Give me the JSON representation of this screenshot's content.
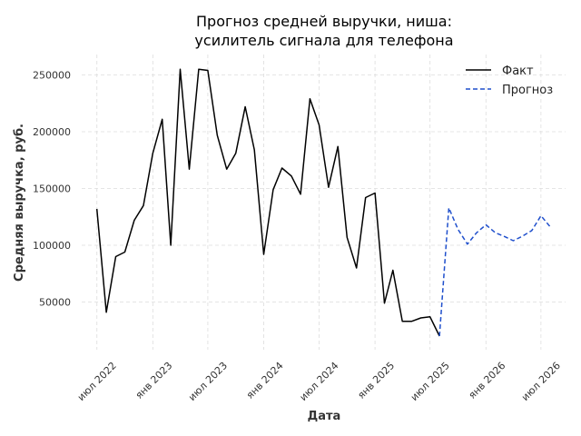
{
  "chart_data": {
    "type": "line",
    "title_lines": [
      "Прогноз средней выручки, ниша:",
      "усилитель сигнала для телефона"
    ],
    "xlabel": "Дата",
    "ylabel": "Средняя выручка, руб.",
    "x_tick_labels": [
      "июл 2022",
      "янв 2023",
      "июл 2023",
      "янв 2024",
      "июл 2024",
      "янв 2025",
      "июл 2025",
      "янв 2026",
      "июл 2026"
    ],
    "y_ticks": [
      50000,
      100000,
      150000,
      200000,
      250000
    ],
    "y_tick_labels": [
      "50000",
      "100000",
      "150000",
      "200000",
      "250000"
    ],
    "ylim": [
      8000,
      268000
    ],
    "xlim": [
      "2022-05-12",
      "2026-09-20"
    ],
    "grid": true,
    "legend_position": "top-right",
    "series": [
      {
        "name": "Факт",
        "color": "#000000",
        "style": "solid",
        "points": [
          [
            "2022-07",
            132000
          ],
          [
            "2022-08",
            41000
          ],
          [
            "2022-09",
            90000
          ],
          [
            "2022-10",
            94000
          ],
          [
            "2022-11",
            122000
          ],
          [
            "2022-12",
            135000
          ],
          [
            "2023-01",
            181000
          ],
          [
            "2023-02",
            211000
          ],
          [
            "2023-03",
            100000
          ],
          [
            "2023-04",
            255000
          ],
          [
            "2023-05",
            167000
          ],
          [
            "2023-06",
            255000
          ],
          [
            "2023-07",
            254000
          ],
          [
            "2023-08",
            197000
          ],
          [
            "2023-09",
            167000
          ],
          [
            "2023-10",
            181000
          ],
          [
            "2023-11",
            222000
          ],
          [
            "2023-12",
            184000
          ],
          [
            "2024-01",
            92000
          ],
          [
            "2024-02",
            149000
          ],
          [
            "2024-03",
            168000
          ],
          [
            "2024-04",
            161000
          ],
          [
            "2024-05",
            145000
          ],
          [
            "2024-06",
            229000
          ],
          [
            "2024-07",
            206000
          ],
          [
            "2024-08",
            151000
          ],
          [
            "2024-09",
            187000
          ],
          [
            "2024-10",
            107000
          ],
          [
            "2024-11",
            80000
          ],
          [
            "2024-12",
            142000
          ],
          [
            "2025-01",
            146000
          ],
          [
            "2025-02",
            49000
          ],
          [
            "2025-03",
            78000
          ],
          [
            "2025-04",
            33000
          ],
          [
            "2025-05",
            33000
          ],
          [
            "2025-06",
            36000
          ],
          [
            "2025-07",
            37000
          ],
          [
            "2025-08",
            20000
          ]
        ]
      },
      {
        "name": "Прогноз",
        "color": "#1f4fcc",
        "style": "dashed",
        "points": [
          [
            "2025-08",
            20000
          ],
          [
            "2025-09",
            133000
          ],
          [
            "2025-10",
            114000
          ],
          [
            "2025-11",
            101000
          ],
          [
            "2025-12",
            111000
          ],
          [
            "2026-01",
            118000
          ],
          [
            "2026-02",
            111000
          ],
          [
            "2026-03",
            108000
          ],
          [
            "2026-04",
            104000
          ],
          [
            "2026-05",
            108000
          ],
          [
            "2026-06",
            113000
          ],
          [
            "2026-07",
            126000
          ],
          [
            "2026-08",
            116000
          ]
        ]
      }
    ]
  }
}
